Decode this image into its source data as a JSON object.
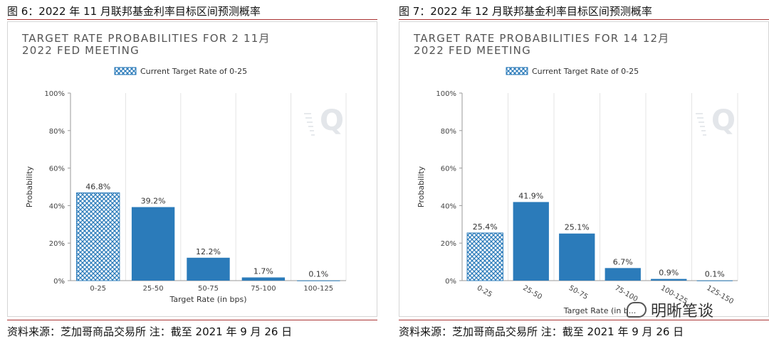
{
  "panels": [
    {
      "figure_title": "图 6：2022 年 11 月联邦基金利率目标区间预测概率",
      "source": "资料来源：芝加哥商品交易所 注：截至 2021 年 9 月 26 日",
      "logo_icon": "q-logo-icon"
    },
    {
      "figure_title": "图 7：2022 年 12 月联邦基金利率目标区间预测概率",
      "source": "资料来源：芝加哥商品交易所 注：截至 2021 年 9 月 26 日",
      "logo_icon": "q-logo-icon"
    }
  ],
  "watermark": {
    "text": "明晰笔谈",
    "icon": "wechat-icon"
  },
  "chart_data": [
    {
      "type": "bar",
      "title_lines": [
        "TARGET RATE PROBABILITIES FOR 2 11月",
        "2022 FED MEETING"
      ],
      "legend": "Current Target Rate of 0-25",
      "legend_placement": "top-left",
      "categories": [
        "0-25",
        "25-50",
        "50-75",
        "75-100",
        "100-125"
      ],
      "values": [
        46.8,
        39.2,
        12.2,
        1.7,
        0.1
      ],
      "value_labels": [
        "46.8%",
        "39.2%",
        "12.2%",
        "1.7%",
        "0.1%"
      ],
      "highlight_index": 0,
      "xlabel": "Target Rate (in bps)",
      "ylabel": "Probability",
      "ylim": [
        0,
        100
      ],
      "yticks": [
        "0%",
        "20%",
        "40%",
        "60%",
        "80%",
        "100%"
      ],
      "xtick_rotation": "none",
      "grid": "vertical",
      "colors": {
        "bar": "#2B7BBA",
        "hatch": "#2B7BBA",
        "grid": "#e4e4e4",
        "title": "#555555"
      }
    },
    {
      "type": "bar",
      "title_lines": [
        "TARGET RATE PROBABILITIES FOR 14 12月",
        "2022 FED MEETING"
      ],
      "legend": "Current Target Rate of 0-25",
      "legend_placement": "top-left",
      "categories": [
        "0-25",
        "25-50",
        "50-75",
        "75-100",
        "100-125",
        "125-150"
      ],
      "values": [
        25.4,
        41.9,
        25.1,
        6.7,
        0.9,
        0.1
      ],
      "value_labels": [
        "25.4%",
        "41.9%",
        "25.1%",
        "6.7%",
        "0.9%",
        "0.1%"
      ],
      "highlight_index": 0,
      "xlabel": "Target Rate (in b...",
      "ylabel": "Probability",
      "ylim": [
        0,
        100
      ],
      "yticks": [
        "0%",
        "20%",
        "40%",
        "60%",
        "80%",
        "100%"
      ],
      "xtick_rotation": "rotated",
      "grid": "vertical",
      "colors": {
        "bar": "#2B7BBA",
        "hatch": "#2B7BBA",
        "grid": "#e4e4e4",
        "title": "#555555"
      }
    }
  ]
}
